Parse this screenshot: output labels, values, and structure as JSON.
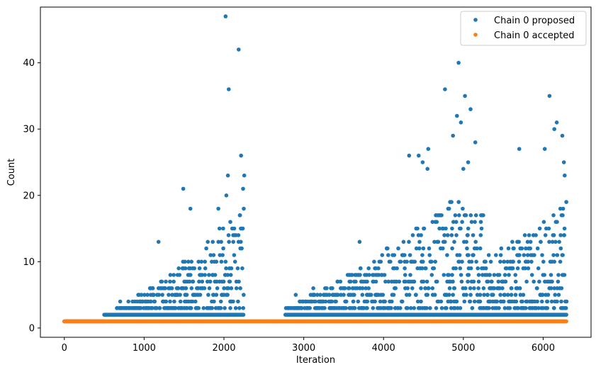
{
  "chart_data": {
    "type": "scatter",
    "title": "",
    "xlabel": "Iteration",
    "ylabel": "Count",
    "xlim": [
      -300,
      6600
    ],
    "ylim": [
      -1.4,
      48.4
    ],
    "xticks": [
      0,
      1000,
      2000,
      3000,
      4000,
      5000,
      6000
    ],
    "yticks": [
      0,
      10,
      20,
      30,
      40
    ],
    "legend_position": "top-right",
    "grid": false,
    "series": [
      {
        "name": "Chain 0 proposed",
        "color": "#1f77b4",
        "segments": [
          [
            0,
            0,
            1
          ],
          [
            500,
            2250,
            1
          ],
          [
            2250,
            2770,
            0
          ],
          [
            2770,
            6290,
            1
          ]
        ],
        "dense_band": [
          [
            0,
            500,
            1
          ],
          [
            500,
            2250,
            2
          ],
          [
            2770,
            6290,
            2
          ]
        ],
        "notable_points": [
          [
            2020,
            47
          ],
          [
            2185,
            42
          ],
          [
            2060,
            36
          ],
          [
            2215,
            26
          ],
          [
            2255,
            23
          ],
          [
            2050,
            23
          ],
          [
            1490,
            21
          ],
          [
            2030,
            20
          ],
          [
            2240,
            21
          ],
          [
            1580,
            18
          ],
          [
            1930,
            18
          ],
          [
            1180,
            13
          ],
          [
            700,
            4
          ],
          [
            2900,
            5
          ],
          [
            3120,
            6
          ],
          [
            3700,
            13
          ],
          [
            4940,
            40
          ],
          [
            4770,
            36
          ],
          [
            5020,
            35
          ],
          [
            5090,
            33
          ],
          [
            4920,
            32
          ],
          [
            4970,
            31
          ],
          [
            4870,
            29
          ],
          [
            5150,
            28
          ],
          [
            4560,
            27
          ],
          [
            4440,
            26
          ],
          [
            4320,
            26
          ],
          [
            4490,
            25
          ],
          [
            5060,
            25
          ],
          [
            4550,
            24
          ],
          [
            5000,
            24
          ],
          [
            6080,
            35
          ],
          [
            6170,
            31
          ],
          [
            6140,
            30
          ],
          [
            6240,
            29
          ],
          [
            5700,
            27
          ],
          [
            6020,
            27
          ],
          [
            6260,
            25
          ],
          [
            6270,
            23
          ],
          [
            6290,
            19
          ]
        ]
      },
      {
        "name": "Chain 0 accepted",
        "color": "#ff7f0e",
        "segments": [
          [
            0,
            6290,
            1
          ]
        ],
        "constant_value": 1
      }
    ]
  }
}
